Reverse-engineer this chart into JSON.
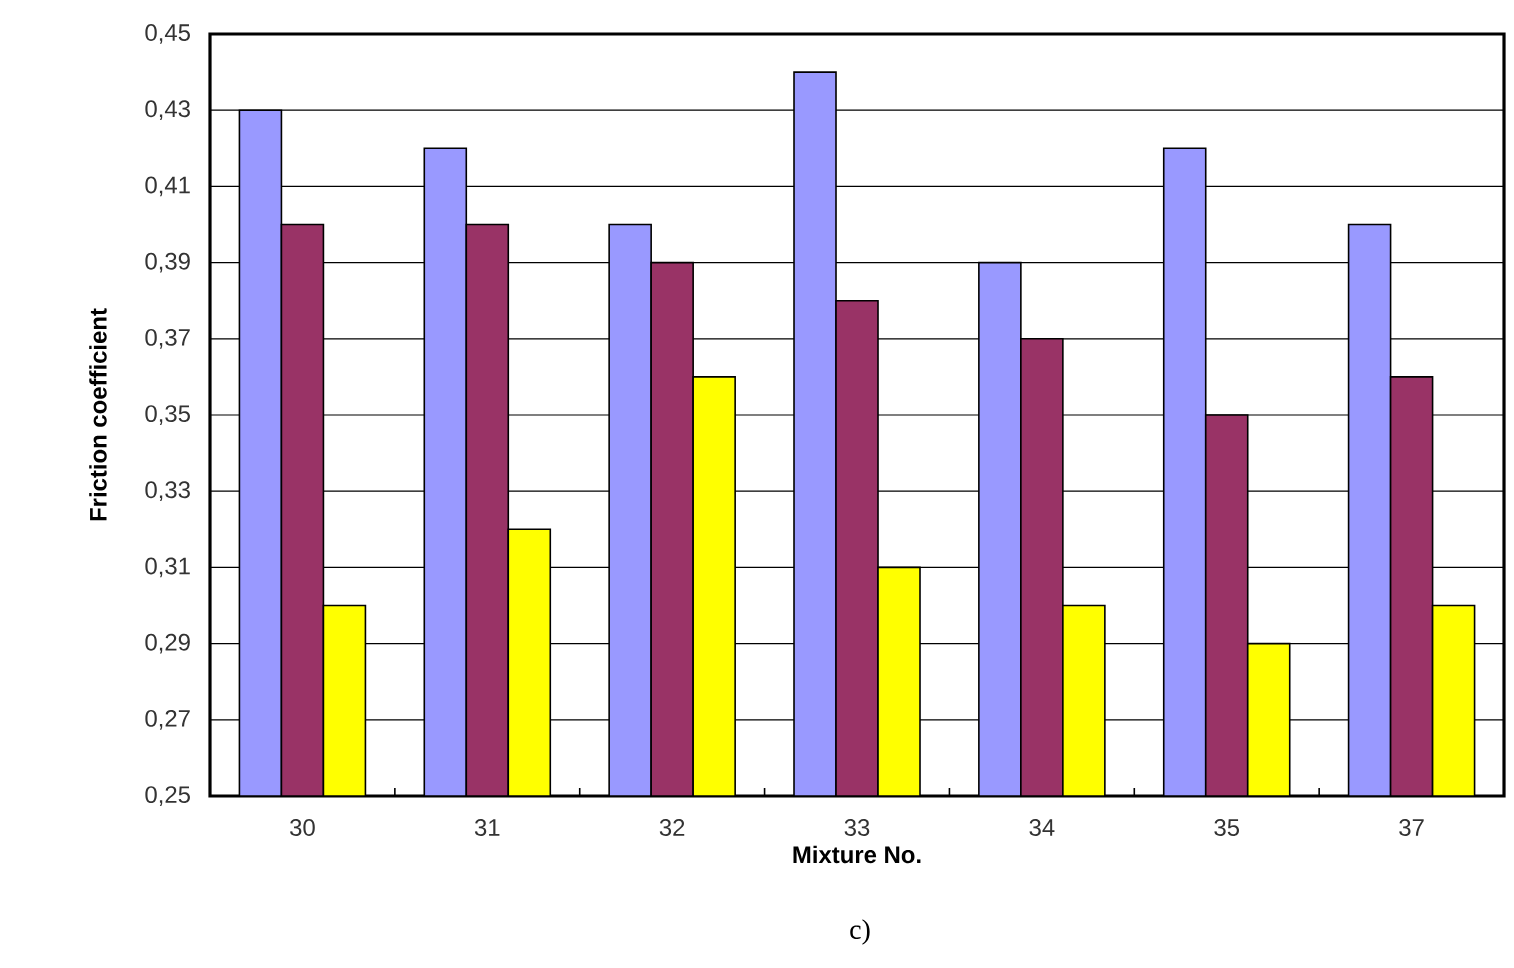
{
  "chart_data": {
    "type": "bar",
    "xlabel": "Mixture No.",
    "ylabel": "Friction coefficient",
    "annotations": [
      "c)"
    ],
    "categories": [
      "30",
      "31",
      "32",
      "33",
      "34",
      "35",
      "37"
    ],
    "series": [
      {
        "color": "#9999ff",
        "values": [
          0.43,
          0.42,
          0.4,
          0.44,
          0.39,
          0.42,
          0.4
        ]
      },
      {
        "color": "#993366",
        "values": [
          0.4,
          0.4,
          0.39,
          0.38,
          0.37,
          0.35,
          0.36
        ]
      },
      {
        "color": "#ffff00",
        "values": [
          0.3,
          0.32,
          0.36,
          0.31,
          0.3,
          0.29,
          0.3
        ]
      }
    ],
    "ylim": [
      0.25,
      0.45
    ],
    "yticks": [
      {
        "value": 0.25,
        "label": "0,25"
      },
      {
        "value": 0.27,
        "label": "0,27"
      },
      {
        "value": 0.29,
        "label": "0,29"
      },
      {
        "value": 0.31,
        "label": "0,31"
      },
      {
        "value": 0.33,
        "label": "0,33"
      },
      {
        "value": 0.35,
        "label": "0,35"
      },
      {
        "value": 0.37,
        "label": "0,37"
      },
      {
        "value": 0.39,
        "label": "0,39"
      },
      {
        "value": 0.41,
        "label": "0,41"
      },
      {
        "value": 0.43,
        "label": "0,43"
      },
      {
        "value": 0.45,
        "label": "0,45"
      }
    ],
    "grid": "y"
  }
}
